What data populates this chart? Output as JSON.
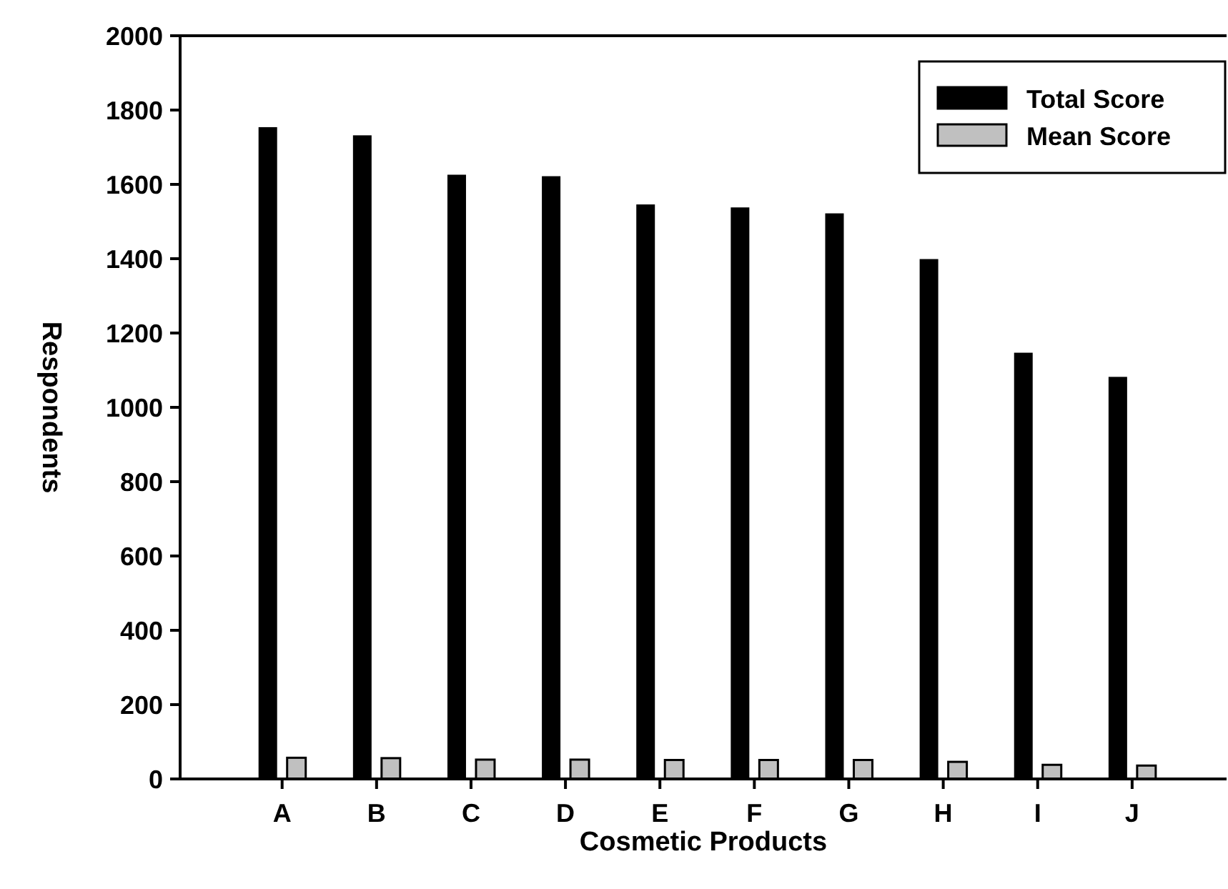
{
  "chart_data": {
    "type": "bar",
    "xlabel": "Cosmetic Products",
    "ylabel": "Respondents",
    "categories": [
      "A",
      "B",
      "C",
      "D",
      "E",
      "F",
      "G",
      "H",
      "I",
      "J"
    ],
    "series": [
      {
        "name": "Total Score",
        "color": "#000000",
        "values": [
          1754,
          1732,
          1626,
          1622,
          1546,
          1538,
          1522,
          1399,
          1147,
          1082
        ]
      },
      {
        "name": "Mean Score",
        "color": "#c0c0c0",
        "values": [
          57,
          56,
          52,
          52,
          51,
          51,
          51,
          46,
          38,
          36
        ]
      }
    ],
    "ylim": [
      0,
      2000
    ],
    "yticks": [
      0,
      200,
      400,
      600,
      800,
      1000,
      1200,
      1400,
      1600,
      1800,
      2000
    ],
    "grid": false,
    "legend": "top right"
  }
}
